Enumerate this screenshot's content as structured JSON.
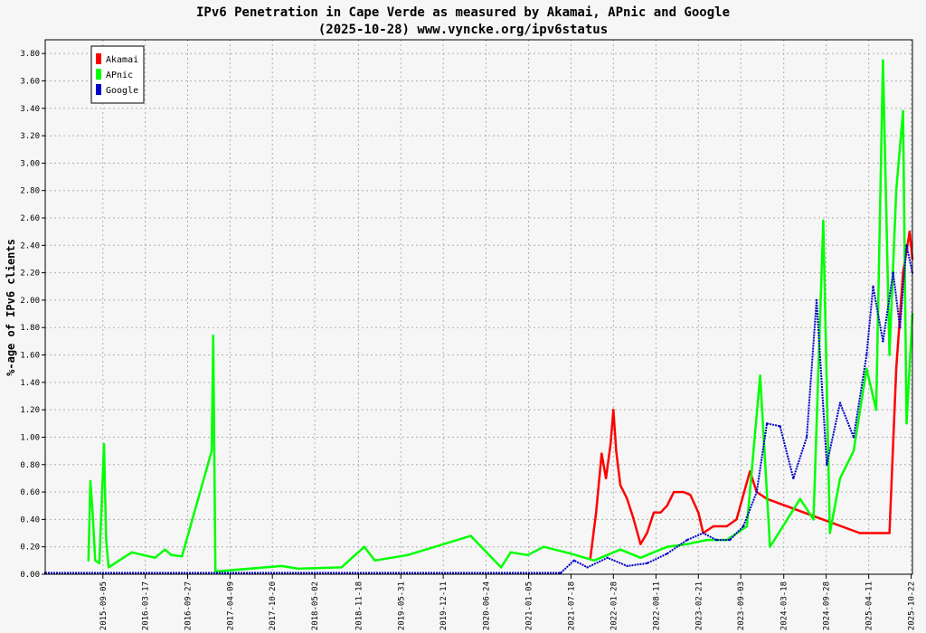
{
  "chart_data": {
    "type": "line",
    "title": "IPv6 Penetration in Cape Verde as measured by Akamai, APnic and Google",
    "subtitle": "(2025-10-28) www.vyncke.org/ipv6status",
    "ylabel": "%-age of IPv6 clients",
    "ylim": [
      0,
      3.9
    ],
    "xlim": [
      "2014-12-15",
      "2025-10-28"
    ],
    "grid": true,
    "legend_position": "top-left",
    "y_ticks": [
      "0.00",
      "0.20",
      "0.40",
      "0.60",
      "0.80",
      "1.00",
      "1.20",
      "1.40",
      "1.60",
      "1.80",
      "2.00",
      "2.20",
      "2.40",
      "2.60",
      "2.80",
      "3.00",
      "3.20",
      "3.40",
      "3.60",
      "3.80"
    ],
    "x_ticks": [
      "2015-09-05",
      "2016-03-17",
      "2016-09-27",
      "2017-04-09",
      "2017-10-20",
      "2018-05-02",
      "2018-11-18",
      "2019-05-31",
      "2019-12-11",
      "2020-06-24",
      "2021-01-05",
      "2021-07-18",
      "2022-01-28",
      "2022-08-11",
      "2023-02-21",
      "2023-09-03",
      "2024-03-18",
      "2024-09-28",
      "2025-04-11",
      "2025-10-22"
    ],
    "series": [
      {
        "name": "Akamai",
        "color": "#ff0000",
        "points": [
          [
            "2021-10-15",
            0.12
          ],
          [
            "2021-11-10",
            0.45
          ],
          [
            "2021-12-05",
            0.88
          ],
          [
            "2021-12-25",
            0.7
          ],
          [
            "2022-01-15",
            0.95
          ],
          [
            "2022-01-28",
            1.2
          ],
          [
            "2022-02-10",
            0.9
          ],
          [
            "2022-03-01",
            0.65
          ],
          [
            "2022-04-01",
            0.55
          ],
          [
            "2022-05-01",
            0.4
          ],
          [
            "2022-06-01",
            0.22
          ],
          [
            "2022-07-01",
            0.3
          ],
          [
            "2022-08-01",
            0.45
          ],
          [
            "2022-09-01",
            0.45
          ],
          [
            "2022-10-01",
            0.5
          ],
          [
            "2022-11-01",
            0.6
          ],
          [
            "2022-12-15",
            0.6
          ],
          [
            "2023-01-15",
            0.58
          ],
          [
            "2023-02-21",
            0.45
          ],
          [
            "2023-03-15",
            0.3
          ],
          [
            "2023-05-01",
            0.35
          ],
          [
            "2023-07-01",
            0.35
          ],
          [
            "2023-08-15",
            0.4
          ],
          [
            "2023-09-10",
            0.55
          ],
          [
            "2023-10-15",
            0.75
          ],
          [
            "2023-11-15",
            0.6
          ],
          [
            "2024-01-01",
            0.55
          ],
          [
            "2025-03-01",
            0.3
          ],
          [
            "2025-06-01",
            0.3
          ],
          [
            "2025-07-15",
            0.3
          ],
          [
            "2025-08-15",
            1.5
          ],
          [
            "2025-09-15",
            2.2
          ],
          [
            "2025-10-15",
            2.5
          ],
          [
            "2025-10-28",
            2.3
          ]
        ]
      },
      {
        "name": "APnic",
        "color": "#00ff00",
        "points": [
          [
            "2015-07-01",
            0.1
          ],
          [
            "2015-07-10",
            0.68
          ],
          [
            "2015-07-20",
            0.45
          ],
          [
            "2015-08-01",
            0.1
          ],
          [
            "2015-08-20",
            0.08
          ],
          [
            "2015-09-10",
            0.95
          ],
          [
            "2015-09-20",
            0.25
          ],
          [
            "2015-10-01",
            0.05
          ],
          [
            "2016-01-15",
            0.16
          ],
          [
            "2016-05-01",
            0.12
          ],
          [
            "2016-06-15",
            0.18
          ],
          [
            "2016-07-15",
            0.14
          ],
          [
            "2016-09-01",
            0.13
          ],
          [
            "2017-01-15",
            0.9
          ],
          [
            "2017-01-22",
            1.74
          ],
          [
            "2017-02-01",
            0.02
          ],
          [
            "2017-12-01",
            0.06
          ],
          [
            "2018-02-15",
            0.04
          ],
          [
            "2018-09-01",
            0.05
          ],
          [
            "2018-12-15",
            0.2
          ],
          [
            "2019-02-01",
            0.1
          ],
          [
            "2019-07-01",
            0.14
          ],
          [
            "2020-04-15",
            0.28
          ],
          [
            "2020-09-01",
            0.05
          ],
          [
            "2020-10-15",
            0.16
          ],
          [
            "2021-01-01",
            0.14
          ],
          [
            "2021-03-15",
            0.2
          ],
          [
            "2021-07-18",
            0.15
          ],
          [
            "2021-11-01",
            0.1
          ],
          [
            "2022-03-01",
            0.18
          ],
          [
            "2022-06-01",
            0.12
          ],
          [
            "2022-10-01",
            0.2
          ],
          [
            "2023-01-01",
            0.22
          ],
          [
            "2023-04-01",
            0.25
          ],
          [
            "2023-07-01",
            0.25
          ],
          [
            "2023-10-01",
            0.35
          ],
          [
            "2023-12-01",
            1.45
          ],
          [
            "2024-01-15",
            0.2
          ],
          [
            "2024-06-01",
            0.55
          ],
          [
            "2024-08-01",
            0.4
          ],
          [
            "2024-09-15",
            2.58
          ],
          [
            "2024-10-15",
            0.3
          ],
          [
            "2024-12-01",
            0.7
          ],
          [
            "2025-02-01",
            0.9
          ],
          [
            "2025-04-01",
            1.5
          ],
          [
            "2025-05-15",
            1.2
          ],
          [
            "2025-06-15",
            3.75
          ],
          [
            "2025-07-15",
            1.6
          ],
          [
            "2025-08-15",
            2.8
          ],
          [
            "2025-09-15",
            3.38
          ],
          [
            "2025-10-01",
            1.1
          ],
          [
            "2025-10-28",
            1.9
          ]
        ]
      },
      {
        "name": "Google",
        "color": "#0000cc",
        "points": [
          [
            "2014-12-15",
            0.01
          ],
          [
            "2021-06-01",
            0.01
          ],
          [
            "2021-08-01",
            0.1
          ],
          [
            "2021-10-01",
            0.05
          ],
          [
            "2022-01-01",
            0.12
          ],
          [
            "2022-04-01",
            0.06
          ],
          [
            "2022-07-01",
            0.08
          ],
          [
            "2022-10-01",
            0.15
          ],
          [
            "2023-01-01",
            0.25
          ],
          [
            "2023-03-15",
            0.3
          ],
          [
            "2023-05-15",
            0.25
          ],
          [
            "2023-07-15",
            0.25
          ],
          [
            "2023-09-15",
            0.35
          ],
          [
            "2023-11-15",
            0.6
          ],
          [
            "2024-01-01",
            1.1
          ],
          [
            "2024-03-01",
            1.08
          ],
          [
            "2024-05-01",
            0.7
          ],
          [
            "2024-07-01",
            1.0
          ],
          [
            "2024-08-15",
            2.0
          ],
          [
            "2024-10-01",
            0.8
          ],
          [
            "2024-12-01",
            1.25
          ],
          [
            "2025-02-01",
            1.0
          ],
          [
            "2025-04-01",
            1.6
          ],
          [
            "2025-05-01",
            2.1
          ],
          [
            "2025-06-15",
            1.7
          ],
          [
            "2025-08-01",
            2.2
          ],
          [
            "2025-09-01",
            1.8
          ],
          [
            "2025-10-01",
            2.4
          ],
          [
            "2025-10-28",
            2.2
          ]
        ]
      }
    ]
  }
}
